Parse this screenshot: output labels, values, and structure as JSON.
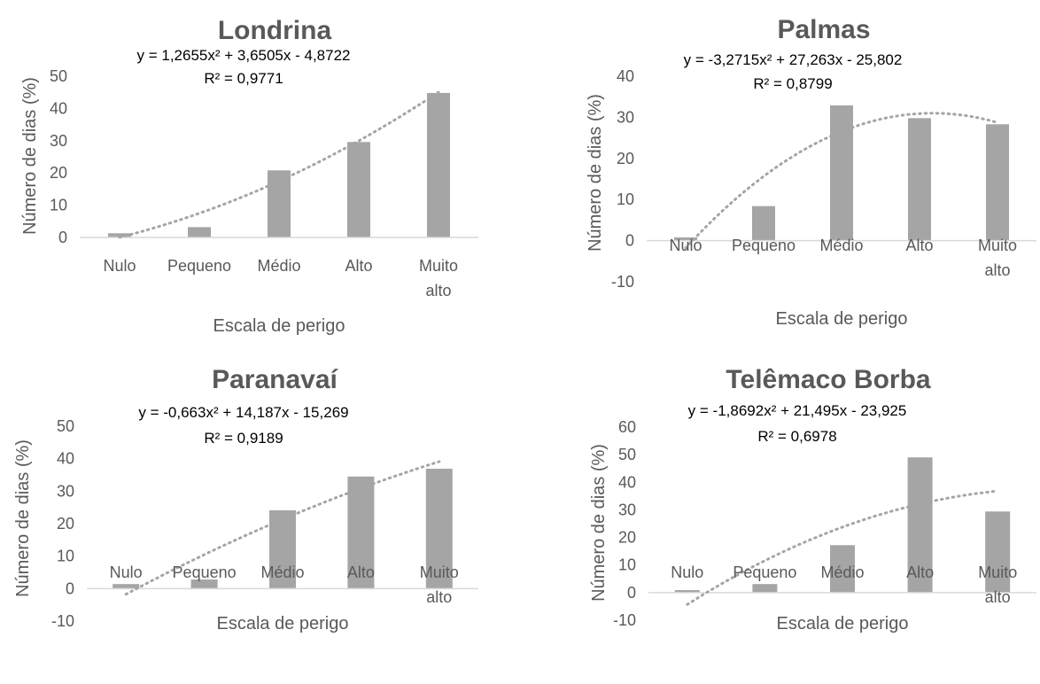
{
  "chart_data": [
    {
      "type": "bar",
      "title": "Londrina",
      "equation": "y = 1,2655x² + 3,6505x - 4,8722",
      "r2": "R² = 0,9771",
      "categories": [
        "Nulo",
        "Pequeno",
        "Médio",
        "Alto",
        "Muito alto"
      ],
      "values": [
        1.3,
        3.2,
        20.8,
        29.6,
        44.8
      ],
      "trend_coefficients": [
        1.2655,
        3.6505,
        -4.8722
      ],
      "ylim": [
        0,
        50
      ],
      "yticks": [
        0,
        10,
        20,
        30,
        40,
        50
      ],
      "ytick_labels": [
        "0",
        "10",
        "20",
        "30",
        "40",
        "50"
      ],
      "xlabel": "Escala de perigo",
      "ylabel": "Número de dias (%)",
      "grid": false,
      "trendline": "polynomial"
    },
    {
      "type": "bar",
      "title": "Palmas",
      "equation": "y = -3,2715x² + 27,263x - 25,802",
      "r2": "R² = 0,8799",
      "categories": [
        "Nulo",
        "Pequeno",
        "Médio",
        "Alto",
        "Muito alto"
      ],
      "values": [
        0.8,
        8.4,
        32.9,
        29.8,
        28.3
      ],
      "trend_coefficients": [
        -3.2715,
        27.263,
        -25.802
      ],
      "ylim": [
        -10,
        40
      ],
      "yticks": [
        -10,
        0,
        10,
        20,
        30,
        40
      ],
      "ytick_labels": [
        "-10",
        "0",
        "10",
        "20",
        "30",
        "40"
      ],
      "xlabel": "Escala de perigo",
      "ylabel": "Número de dias (%)",
      "grid": false,
      "trendline": "polynomial"
    },
    {
      "type": "bar",
      "title": "Paranavaí",
      "equation": "y = -0,663x² + 14,187x - 15,269",
      "r2": "R² = 0,9189",
      "categories": [
        "Nulo",
        "Pequeno",
        "Médio",
        "Alto",
        "Muito alto"
      ],
      "values": [
        1.4,
        2.8,
        24.1,
        34.5,
        36.9
      ],
      "trend_coefficients": [
        -0.663,
        14.187,
        -15.269
      ],
      "ylim": [
        -10,
        50
      ],
      "yticks": [
        -10,
        0,
        10,
        20,
        30,
        40,
        50
      ],
      "ytick_labels": [
        "-10",
        "0",
        "10",
        "20",
        "30",
        "40",
        "50"
      ],
      "xlabel": "Escala de perigo",
      "ylabel": "Número de dias (%)",
      "grid": false,
      "trendline": "polynomial"
    },
    {
      "type": "bar",
      "title": "Telêmaco Borba",
      "equation": "y = -1,8692x² + 21,495x - 23,925",
      "r2": "R² = 0,6978",
      "categories": [
        "Nulo",
        "Pequeno",
        "Médio",
        "Alto",
        "Muito alto"
      ],
      "values": [
        0.9,
        3.1,
        17.2,
        49.0,
        29.4
      ],
      "trend_coefficients": [
        -1.8692,
        21.495,
        -23.925
      ],
      "ylim": [
        -10,
        60
      ],
      "yticks": [
        -10,
        0,
        10,
        20,
        30,
        40,
        50,
        60
      ],
      "ytick_labels": [
        "-10",
        "0",
        "10",
        "20",
        "30",
        "40",
        "50",
        "60"
      ],
      "xlabel": "Escala de perigo",
      "ylabel": "Número de dias (%)",
      "grid": false,
      "trendline": "polynomial"
    }
  ]
}
